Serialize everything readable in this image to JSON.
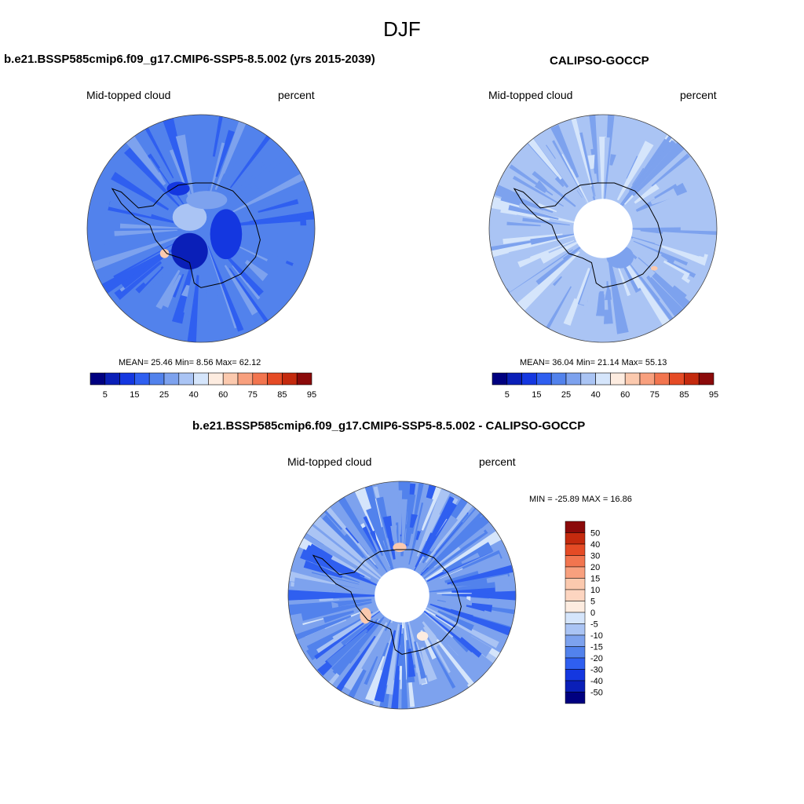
{
  "title": "DJF",
  "colors": {
    "levels13": [
      "#000080",
      "#0a1fb8",
      "#1437e0",
      "#2f5ff0",
      "#5282ec",
      "#7da2ee",
      "#aac4f4",
      "#d5e5fb",
      "#fdece0",
      "#fbc9ae",
      "#f8a07e",
      "#f2754f",
      "#e54b25",
      "#c42a0e",
      "#8b0a0a"
    ],
    "diff": [
      "#000080",
      "#0a1fb8",
      "#1437e0",
      "#2f5ff0",
      "#5282ec",
      "#7da2ee",
      "#aac4f4",
      "#d5e5fb",
      "#fdece0",
      "#fbc9ae",
      "#f8a07e",
      "#f2754f",
      "#e54b25",
      "#c42a0e",
      "#8b0a0a"
    ],
    "coast": "#000000"
  },
  "panels": {
    "model": {
      "heading": "b.e21.BSSP585cmip6.f09_g17.CMIP6-SSP5-8.5.002 (yrs 2015-2039)",
      "left_label": "Mid-topped cloud",
      "right_label": "percent",
      "stats": "MEAN=  25.46  Min=   8.56  Max=  62.12"
    },
    "obs": {
      "heading": "CALIPSO-GOCCP",
      "left_label": "Mid-topped cloud",
      "right_label": "percent",
      "stats": "MEAN=  36.04  Min=  21.14  Max=  55.13"
    },
    "diff": {
      "heading": "b.e21.BSSP585cmip6.f09_g17.CMIP6-SSP5-8.5.002 - CALIPSO-GOCCP",
      "left_label": "Mid-topped cloud",
      "right_label": "percent",
      "stats": "MIN = -25.89 MAX =  16.86"
    }
  },
  "chart_data": [
    {
      "type": "heatmap",
      "projection": "south-polar-stereographic",
      "title": "b.e21.BSSP585cmip6.f09_g17.CMIP6-SSP5-8.5.002 (yrs 2015-2039)",
      "variable": "Mid-topped cloud",
      "units": "percent",
      "mean": 25.46,
      "min": 8.56,
      "max": 62.12,
      "colorbar_ticks": [
        "5",
        "15",
        "25",
        "40",
        "60",
        "75",
        "85",
        "95"
      ]
    },
    {
      "type": "heatmap",
      "projection": "south-polar-stereographic",
      "title": "CALIPSO-GOCCP",
      "variable": "Mid-topped cloud",
      "units": "percent",
      "mean": 36.04,
      "min": 21.14,
      "max": 55.13,
      "colorbar_ticks": [
        "5",
        "15",
        "25",
        "40",
        "60",
        "75",
        "85",
        "95"
      ]
    },
    {
      "type": "heatmap",
      "projection": "south-polar-stereographic",
      "title": "b.e21.BSSP585cmip6.f09_g17.CMIP6-SSP5-8.5.002 - CALIPSO-GOCCP",
      "variable": "Mid-topped cloud",
      "units": "percent",
      "min": -25.89,
      "max": 16.86,
      "colorbar_ticks": [
        "50",
        "40",
        "30",
        "20",
        "15",
        "10",
        "5",
        "0",
        "-5",
        "-10",
        "-15",
        "-20",
        "-30",
        "-40",
        "-50"
      ]
    }
  ]
}
